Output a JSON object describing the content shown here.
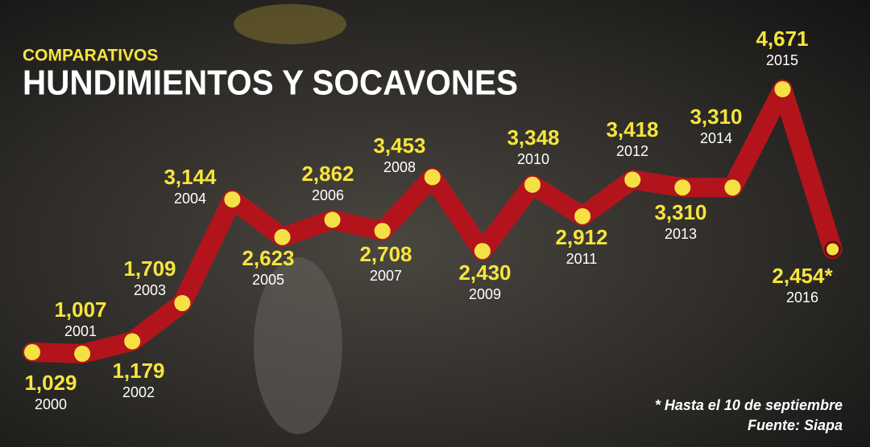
{
  "chart_data": {
    "type": "line",
    "subtitle": "COMPARATIVOS",
    "title": "HUNDIMIENTOS Y SOCAVONES",
    "x": [
      "2000",
      "2001",
      "2002",
      "2003",
      "2004",
      "2005",
      "2006",
      "2007",
      "2008",
      "2009",
      "2010",
      "2011",
      "2012",
      "2013",
      "2014",
      "2015",
      "2016"
    ],
    "values": [
      1029,
      1007,
      1179,
      1709,
      3144,
      2623,
      2862,
      2708,
      3453,
      2430,
      3348,
      2912,
      3418,
      3310,
      3310,
      4671,
      2454
    ],
    "value_labels": [
      "1,029",
      "1,007",
      "1,179",
      "1,709",
      "3,144",
      "2,623",
      "2,862",
      "2,708",
      "3,453",
      "2,430",
      "3,348",
      "2,912",
      "3,418",
      "3,310",
      "3,310",
      "4,671",
      "2,454*"
    ],
    "color": "#b3141c",
    "marker_color": "#f4e244",
    "notes": [
      "* Hasta el 10 de septiembre",
      "Fuente: Siapa"
    ]
  }
}
